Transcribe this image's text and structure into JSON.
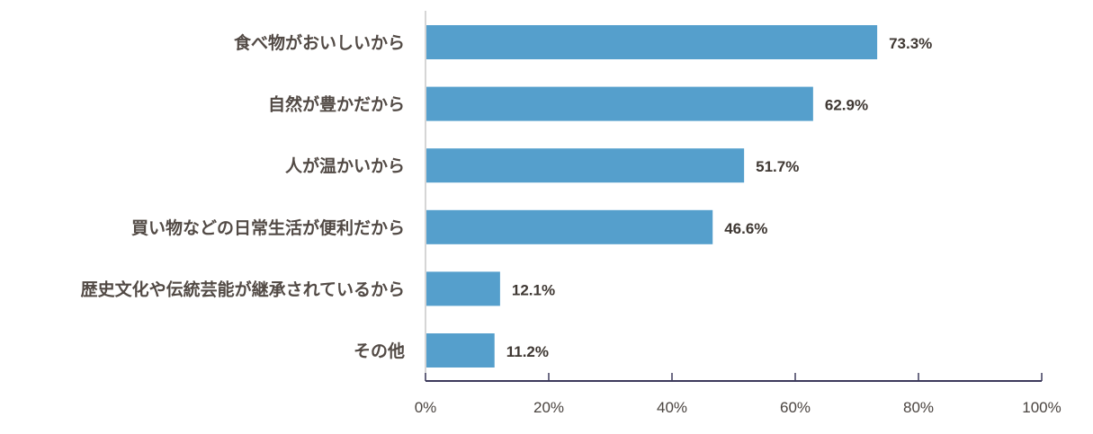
{
  "chart_data": {
    "type": "bar",
    "orientation": "horizontal",
    "categories": [
      "食べ物がおいしいから",
      "自然が豊かだから",
      "人が温かいから",
      "買い物などの日常生活が便利だから",
      "歴史文化や伝統芸能が継承されているから",
      "その他"
    ],
    "values": [
      73.3,
      62.9,
      51.7,
      46.6,
      12.1,
      11.2
    ],
    "value_labels": [
      "73.3%",
      "62.9%",
      "51.7%",
      "46.6%",
      "12.1%",
      "11.2%"
    ],
    "xlim": [
      0,
      100
    ],
    "x_ticks": [
      0,
      20,
      40,
      60,
      80,
      100
    ],
    "x_tick_labels": [
      "0%",
      "20%",
      "40%",
      "60%",
      "80%",
      "100%"
    ],
    "title": "",
    "xlabel": "",
    "ylabel": "",
    "grid": false,
    "bar_color": "#559fcc",
    "axis_color": "#3d3a5c"
  }
}
